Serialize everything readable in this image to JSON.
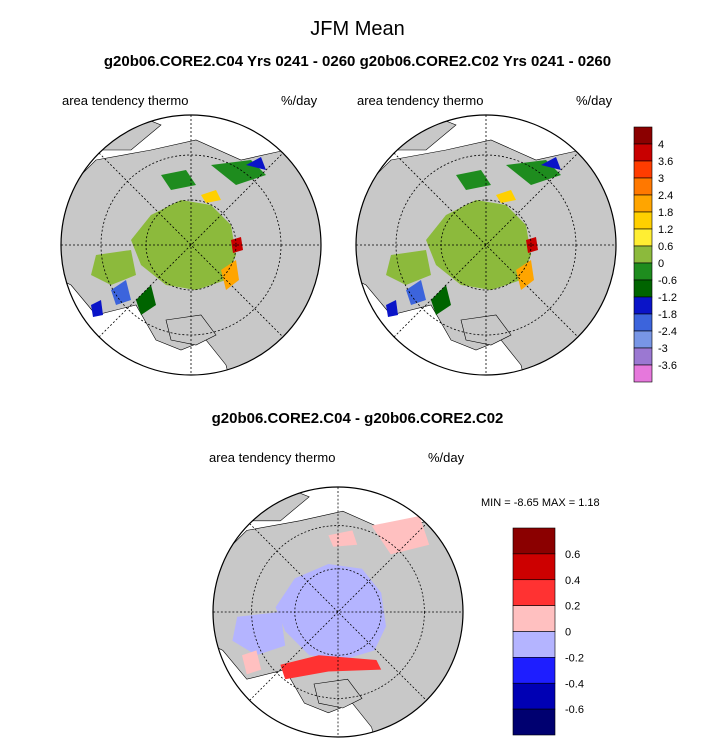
{
  "title": "JFM Mean",
  "subtitle": "g20b06.CORE2.C04  Yrs 0241 - 0260 g20b06.CORE2.C02  Yrs 0241 - 0260",
  "diff_title": "g20b06.CORE2.C04 - g20b06.CORE2.C02",
  "panels": [
    {
      "label": "area tendency thermo",
      "units": "%/day"
    },
    {
      "label": "area tendency thermo",
      "units": "%/day"
    },
    {
      "label": "area tendency thermo",
      "units": "%/day"
    }
  ],
  "minmax_text": "MIN =  -8.65 MAX =   1.18",
  "colors": {
    "land": "#c8c8c8",
    "ocean": "#ffffff",
    "ice_zero": "#8cba3c"
  },
  "chart_data": [
    {
      "type": "heatmap",
      "projection": "north-polar-stereographic",
      "grid": true,
      "colorbar": {
        "tick_labels": [
          "4",
          "3.6",
          "3",
          "2.4",
          "1.8",
          "1.2",
          "0.6",
          "0",
          "-0.6",
          "-1.2",
          "-1.8",
          "-2.4",
          "-3",
          "-3.6"
        ],
        "colors": [
          "#8b0000",
          "#c80000",
          "#ff3c00",
          "#ff7800",
          "#ffa500",
          "#ffd000",
          "#ffee33",
          "#8cba3c",
          "#1e8c1e",
          "#006400",
          "#0a14c8",
          "#3c64dc",
          "#7896e6",
          "#9b78d2",
          "#e678dc"
        ]
      }
    },
    {
      "type": "heatmap",
      "projection": "north-polar-stereographic",
      "grid": true,
      "colorbar": "shared"
    },
    {
      "type": "heatmap",
      "projection": "north-polar-stereographic",
      "grid": true,
      "colorbar": {
        "tick_labels": [
          "0.6",
          "0.4",
          "0.2",
          "0",
          "-0.2",
          "-0.4",
          "-0.6"
        ],
        "colors": [
          "#8b0000",
          "#cd0000",
          "#ff3232",
          "#ffc0c0",
          "#b4b4ff",
          "#1e1eff",
          "#0000b4",
          "#000070"
        ]
      }
    }
  ]
}
